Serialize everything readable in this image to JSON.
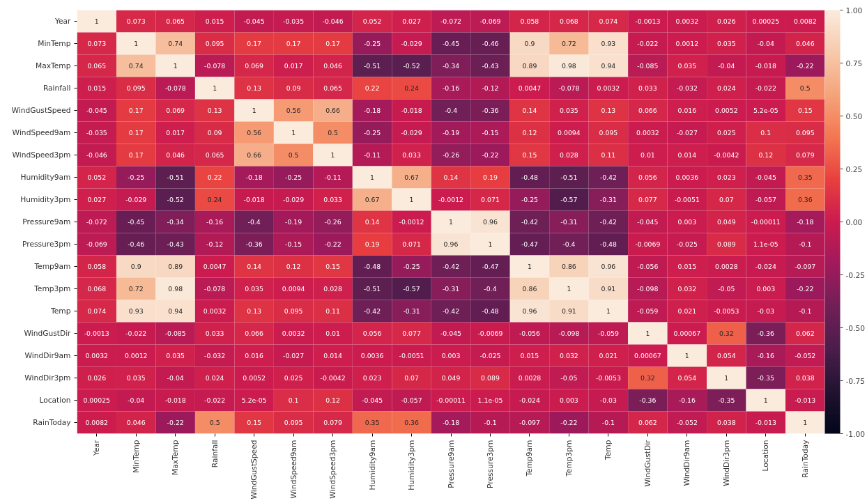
{
  "chart_data": {
    "type": "heatmap",
    "categories": [
      "Year",
      "MinTemp",
      "MaxTemp",
      "Rainfall",
      "WindGustSpeed",
      "WindSpeed9am",
      "WindSpeed3pm",
      "Humidity9am",
      "Humidity3pm",
      "Pressure9am",
      "Pressure3pm",
      "Temp9am",
      "Temp3pm",
      "Temp",
      "WindGustDir",
      "WindDir9am",
      "WindDir3pm",
      "Location",
      "RainToday"
    ],
    "y_categories": [
      "Year",
      "MinTemp",
      "MaxTemp",
      "Rainfall",
      "WindGustSpeed",
      "WindSpeed9am",
      "WindSpeed3pm",
      "Humidity9am",
      "Humidity3pm",
      "Pressure9am",
      "Pressure3pm",
      "Temp9am",
      "Temp3pm",
      "Temp",
      "WindGustDir",
      "WindDir9am",
      "WindDir3pm",
      "Location",
      "RainToday"
    ],
    "cells": [
      [
        1,
        0.073,
        0.065,
        0.015,
        -0.045,
        -0.035,
        -0.046,
        0.052,
        0.027,
        -0.072,
        -0.069,
        0.058,
        0.068,
        0.074,
        -0.0013,
        0.0032,
        0.026,
        0.00025,
        0.0082
      ],
      [
        0.073,
        1,
        0.74,
        0.095,
        0.17,
        0.17,
        0.17,
        -0.25,
        -0.029,
        -0.45,
        -0.46,
        0.9,
        0.72,
        0.93,
        -0.022,
        0.0012,
        0.035,
        -0.04,
        0.046
      ],
      [
        0.065,
        0.74,
        1,
        -0.078,
        0.069,
        0.017,
        0.046,
        -0.51,
        -0.52,
        -0.34,
        -0.43,
        0.89,
        0.98,
        0.94,
        -0.085,
        0.035,
        -0.04,
        -0.018,
        -0.22
      ],
      [
        0.015,
        0.095,
        -0.078,
        1,
        0.13,
        0.09,
        0.065,
        0.22,
        0.24,
        -0.16,
        -0.12,
        0.0047,
        -0.078,
        0.0032,
        0.033,
        -0.032,
        0.024,
        -0.022,
        0.5
      ],
      [
        -0.045,
        0.17,
        0.069,
        0.13,
        1,
        0.56,
        0.66,
        -0.18,
        -0.018,
        -0.4,
        -0.36,
        0.14,
        0.035,
        0.13,
        0.066,
        0.016,
        0.0052,
        5.2e-05,
        0.15
      ],
      [
        -0.035,
        0.17,
        0.017,
        0.09,
        0.56,
        1,
        0.5,
        -0.25,
        -0.029,
        -0.19,
        -0.15,
        0.12,
        0.0094,
        0.095,
        0.0032,
        -0.027,
        0.025,
        0.1,
        0.095
      ],
      [
        -0.046,
        0.17,
        0.046,
        0.065,
        0.66,
        0.5,
        1,
        -0.11,
        0.033,
        -0.26,
        -0.22,
        0.15,
        0.028,
        0.11,
        0.01,
        0.014,
        -0.0042,
        0.12,
        0.079
      ],
      [
        0.052,
        -0.25,
        -0.51,
        0.22,
        -0.18,
        -0.25,
        -0.11,
        1,
        0.67,
        0.14,
        0.19,
        -0.48,
        -0.51,
        -0.42,
        0.056,
        0.0036,
        0.023,
        -0.045,
        0.35
      ],
      [
        0.027,
        -0.029,
        -0.52,
        0.24,
        -0.018,
        -0.029,
        0.033,
        0.67,
        1,
        -0.0012,
        0.071,
        -0.25,
        -0.57,
        -0.31,
        0.077,
        -0.0051,
        0.07,
        -0.057,
        0.36
      ],
      [
        -0.072,
        -0.45,
        -0.34,
        -0.16,
        -0.4,
        -0.19,
        -0.26,
        0.14,
        -0.0012,
        1,
        0.96,
        -0.42,
        -0.31,
        -0.42,
        -0.045,
        0.003,
        0.049,
        -0.00011,
        -0.18
      ],
      [
        -0.069,
        -0.46,
        -0.43,
        -0.12,
        -0.36,
        -0.15,
        -0.22,
        0.19,
        0.071,
        0.96,
        1,
        -0.47,
        -0.4,
        -0.48,
        -0.0069,
        -0.025,
        0.089,
        1.1e-05,
        -0.1
      ],
      [
        0.058,
        0.9,
        0.89,
        0.0047,
        0.14,
        0.12,
        0.15,
        -0.48,
        -0.25,
        -0.42,
        -0.47,
        1,
        0.86,
        0.96,
        -0.056,
        0.015,
        0.0028,
        -0.024,
        -0.097
      ],
      [
        0.068,
        0.72,
        0.98,
        -0.078,
        0.035,
        0.0094,
        0.028,
        -0.51,
        -0.57,
        -0.31,
        -0.4,
        0.86,
        1,
        0.91,
        -0.098,
        0.032,
        -0.05,
        0.003,
        -0.22
      ],
      [
        0.074,
        0.93,
        0.94,
        0.0032,
        0.13,
        0.095,
        0.11,
        -0.42,
        -0.31,
        -0.42,
        -0.48,
        0.96,
        0.91,
        1,
        -0.059,
        0.021,
        -0.0053,
        -0.03,
        -0.1
      ],
      [
        -0.0013,
        -0.022,
        -0.085,
        0.033,
        0.066,
        0.0032,
        0.01,
        0.056,
        0.077,
        -0.045,
        -0.0069,
        -0.056,
        -0.098,
        -0.059,
        1,
        0.00067,
        0.32,
        -0.36,
        0.062
      ],
      [
        0.0032,
        0.0012,
        0.035,
        -0.032,
        0.016,
        -0.027,
        0.014,
        0.0036,
        -0.0051,
        0.003,
        -0.025,
        0.015,
        0.032,
        0.021,
        0.00067,
        1,
        0.054,
        -0.16,
        -0.052
      ],
      [
        0.026,
        0.035,
        -0.04,
        0.024,
        0.0052,
        0.025,
        -0.0042,
        0.023,
        0.07,
        0.049,
        0.089,
        0.0028,
        -0.05,
        -0.0053,
        0.32,
        0.054,
        1,
        -0.35,
        0.038
      ],
      [
        0.00025,
        -0.04,
        -0.018,
        -0.022,
        5.2e-05,
        0.1,
        0.12,
        -0.045,
        -0.057,
        -0.00011,
        1.1e-05,
        -0.024,
        0.003,
        -0.03,
        -0.36,
        -0.16,
        -0.35,
        1,
        -0.013
      ],
      [
        0.0082,
        0.046,
        -0.22,
        0.5,
        0.15,
        0.095,
        0.079,
        0.35,
        0.36,
        -0.18,
        -0.1,
        -0.097,
        -0.22,
        -0.1,
        0.062,
        -0.052,
        0.038,
        -0.013,
        1
      ]
    ],
    "data_labels": true,
    "clim": [
      -1,
      1
    ],
    "cticks": [
      {
        "value": -1,
        "label": "-1.00"
      },
      {
        "value": -0.75,
        "label": "-0.75"
      },
      {
        "value": -0.5,
        "label": "-0.50"
      },
      {
        "value": -0.25,
        "label": "-0.25"
      },
      {
        "value": 0,
        "label": "0.00"
      },
      {
        "value": 0.25,
        "label": "0.25"
      },
      {
        "value": 0.5,
        "label": "0.50"
      },
      {
        "value": 0.75,
        "label": "0.75"
      },
      {
        "value": 1,
        "label": "1.00"
      }
    ]
  }
}
